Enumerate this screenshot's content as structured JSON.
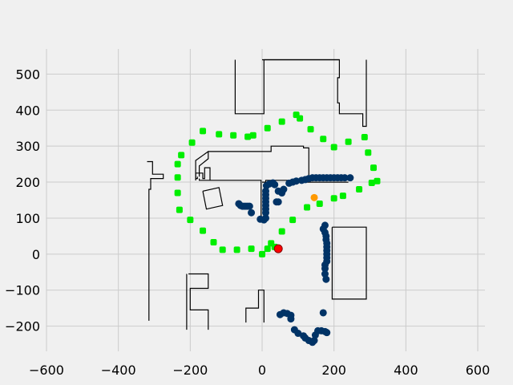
{
  "chart_data": {
    "type": "scatter",
    "title": "",
    "xlabel": "",
    "ylabel": "",
    "xlim": [
      -600,
      620
    ],
    "ylim": [
      -270,
      570
    ],
    "grid": true,
    "x_ticks": [
      -600,
      -400,
      -200,
      0,
      200,
      400,
      600
    ],
    "x_tick_labels": [
      "−600",
      "−400",
      "−200",
      "0",
      "200",
      "400",
      "600"
    ],
    "y_ticks": [
      -200,
      -100,
      0,
      100,
      200,
      300,
      400,
      500
    ],
    "y_tick_labels": [
      "−200",
      "−100",
      "0",
      "100",
      "200",
      "300",
      "400",
      "500"
    ],
    "colors": {
      "background": "#f0f0f0",
      "grid": "#cbcbcb",
      "walls": "#000000",
      "observations": "#003366",
      "waypoints": "#00ee00",
      "target": "#ff9900",
      "robot": "#ff0000"
    },
    "walls": [
      [
        [
          -75,
          540
        ],
        [
          -75,
          390
        ],
        [
          5,
          390
        ],
        [
          5,
          540
        ]
      ],
      [
        [
          5,
          540
        ],
        [
          5,
          540
        ],
        [
          215,
          540
        ]
      ],
      [
        [
          0,
          540
        ],
        [
          215,
          540
        ],
        [
          215,
          490
        ],
        [
          210,
          490
        ],
        [
          210,
          420
        ],
        [
          215,
          420
        ],
        [
          215,
          390
        ],
        [
          280,
          390
        ],
        [
          280,
          355
        ],
        [
          290,
          355
        ],
        [
          290,
          540
        ]
      ],
      [
        [
          -150,
          285
        ],
        [
          -185,
          260
        ],
        [
          -185,
          210
        ],
        [
          -180,
          210
        ],
        [
          -180,
          215
        ]
      ],
      [
        [
          -175,
          215
        ],
        [
          -175,
          245
        ],
        [
          -150,
          265
        ],
        [
          -150,
          285
        ],
        [
          25,
          285
        ],
        [
          25,
          300
        ],
        [
          115,
          300
        ],
        [
          115,
          295
        ],
        [
          130,
          295
        ],
        [
          130,
          215
        ]
      ],
      [
        [
          -185,
          205
        ],
        [
          -185,
          225
        ],
        [
          -165,
          225
        ],
        [
          -165,
          210
        ],
        [
          -160,
          210
        ],
        [
          -160,
          240
        ],
        [
          -145,
          240
        ],
        [
          -145,
          205
        ]
      ],
      [
        [
          -185,
          205
        ],
        [
          -185,
          210
        ]
      ],
      [
        [
          -175,
          210
        ],
        [
          -175,
          205
        ],
        [
          -3,
          205
        ],
        [
          -3,
          100
        ],
        [
          0,
          100
        ]
      ],
      [
        [
          0,
          200
        ],
        [
          10,
          200
        ],
        [
          10,
          205
        ],
        [
          95,
          205
        ],
        [
          95,
          200
        ],
        [
          240,
          200
        ]
      ],
      [
        [
          -320,
          257
        ],
        [
          -305,
          257
        ],
        [
          -305,
          222
        ],
        [
          -275,
          222
        ],
        [
          -275,
          210
        ],
        [
          -310,
          210
        ],
        [
          -310,
          180
        ],
        [
          -315,
          180
        ],
        [
          -315,
          -185
        ]
      ],
      [
        [
          -205,
          -55
        ],
        [
          -150,
          -55
        ],
        [
          -150,
          -95
        ],
        [
          -200,
          -95
        ],
        [
          -200,
          -155
        ],
        [
          -150,
          -155
        ],
        [
          -150,
          -210
        ]
      ],
      [
        [
          -210,
          -55
        ],
        [
          -210,
          -210
        ]
      ],
      [
        [
          -45,
          -190
        ],
        [
          -45,
          -150
        ],
        [
          -10,
          -150
        ],
        [
          -10,
          -100
        ],
        [
          5,
          -100
        ],
        [
          5,
          -190
        ]
      ],
      [
        [
          195,
          75
        ],
        [
          290,
          75
        ],
        [
          290,
          -125
        ],
        [
          195,
          -125
        ],
        [
          195,
          75
        ]
      ],
      [
        [
          -165,
          175
        ],
        [
          -120,
          185
        ],
        [
          -110,
          135
        ],
        [
          -155,
          125
        ],
        [
          -165,
          175
        ]
      ]
    ],
    "series": [
      {
        "points": [
          [
            -65,
            140
          ],
          [
            -60,
            135
          ],
          [
            -55,
            133
          ],
          [
            -50,
            133
          ],
          [
            -45,
            133
          ],
          [
            -40,
            133
          ],
          [
            -35,
            133
          ],
          [
            -30,
            115
          ],
          [
            -5,
            97
          ],
          [
            5,
            95
          ],
          [
            10,
            100
          ],
          [
            10,
            115
          ],
          [
            10,
            125
          ],
          [
            10,
            135
          ],
          [
            10,
            145
          ],
          [
            10,
            155
          ],
          [
            10,
            165
          ],
          [
            10,
            175
          ],
          [
            12,
            190
          ],
          [
            20,
            195
          ],
          [
            30,
            198
          ],
          [
            35,
            193
          ],
          [
            45,
            175
          ],
          [
            55,
            170
          ],
          [
            60,
            180
          ],
          [
            75,
            197
          ],
          [
            85,
            200
          ],
          [
            95,
            203
          ],
          [
            110,
            205
          ],
          [
            120,
            207
          ],
          [
            130,
            210
          ],
          [
            140,
            212
          ],
          [
            150,
            212
          ],
          [
            160,
            212
          ],
          [
            170,
            212
          ],
          [
            180,
            212
          ],
          [
            190,
            212
          ],
          [
            200,
            212
          ],
          [
            210,
            212
          ],
          [
            220,
            212
          ],
          [
            230,
            212
          ],
          [
            245,
            212
          ],
          [
            40,
            145
          ],
          [
            45,
            145
          ],
          [
            175,
            80
          ],
          [
            170,
            70
          ],
          [
            175,
            60
          ],
          [
            178,
            50
          ],
          [
            178,
            40
          ],
          [
            180,
            30
          ],
          [
            180,
            20
          ],
          [
            180,
            10
          ],
          [
            180,
            0
          ],
          [
            180,
            -10
          ],
          [
            180,
            -20
          ],
          [
            175,
            -30
          ],
          [
            175,
            -40
          ],
          [
            175,
            -55
          ],
          [
            178,
            -70
          ],
          [
            170,
            -163
          ],
          [
            50,
            -168
          ],
          [
            60,
            -163
          ],
          [
            70,
            -165
          ],
          [
            80,
            -170
          ],
          [
            80,
            -180
          ],
          [
            90,
            -210
          ],
          [
            100,
            -220
          ],
          [
            115,
            -227
          ],
          [
            120,
            -233
          ],
          [
            130,
            -240
          ],
          [
            140,
            -245
          ],
          [
            145,
            -240
          ],
          [
            148,
            -225
          ],
          [
            155,
            -213
          ],
          [
            165,
            -213
          ],
          [
            175,
            -215
          ],
          [
            180,
            -218
          ]
        ]
      },
      {
        "points": [
          [
            -235,
            250
          ],
          [
            -235,
            213
          ],
          [
            -235,
            170
          ],
          [
            -230,
            123
          ],
          [
            -200,
            95
          ],
          [
            -165,
            65
          ],
          [
            -135,
            33
          ],
          [
            -110,
            12
          ],
          [
            -70,
            12
          ],
          [
            -30,
            15
          ],
          [
            0,
            0
          ],
          [
            15,
            15
          ],
          [
            25,
            30
          ],
          [
            -225,
            275
          ],
          [
            -195,
            310
          ],
          [
            -165,
            342
          ],
          [
            -120,
            333
          ],
          [
            -80,
            330
          ],
          [
            -40,
            326
          ],
          [
            -25,
            330
          ],
          [
            15,
            350
          ],
          [
            55,
            368
          ],
          [
            95,
            387
          ],
          [
            105,
            377
          ],
          [
            135,
            347
          ],
          [
            170,
            320
          ],
          [
            200,
            297
          ],
          [
            240,
            312
          ],
          [
            285,
            325
          ],
          [
            295,
            282
          ],
          [
            310,
            240
          ],
          [
            320,
            203
          ],
          [
            305,
            198
          ],
          [
            270,
            180
          ],
          [
            225,
            162
          ],
          [
            200,
            155
          ],
          [
            160,
            140
          ],
          [
            125,
            130
          ],
          [
            85,
            95
          ],
          [
            55,
            63
          ],
          [
            35,
            20
          ]
        ]
      }
    ],
    "target_point": [
      145,
      157
    ],
    "robot_point": [
      45,
      15
    ]
  }
}
